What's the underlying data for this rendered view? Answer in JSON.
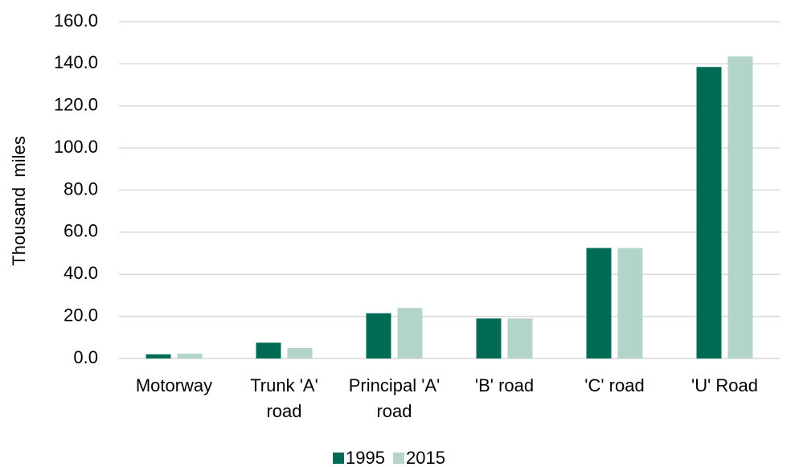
{
  "chart_data": {
    "type": "bar",
    "y_label": "Thousand  miles",
    "categories": [
      "Motorway",
      "Trunk 'A' road",
      "Principal 'A' road",
      "'B' road",
      "'C' road",
      "'U' Road"
    ],
    "series": [
      {
        "name": "1995",
        "color": "#006b54",
        "values": [
          2.0,
          7.5,
          21.5,
          19.0,
          52.5,
          138.5
        ]
      },
      {
        "name": "2015",
        "color": "#b3d4cb",
        "values": [
          2.3,
          5.0,
          24.0,
          19.0,
          52.5,
          143.5
        ]
      }
    ],
    "ylim": [
      0,
      160
    ],
    "yticks": [
      {
        "value": 0,
        "label": "0.0"
      },
      {
        "value": 20,
        "label": "20.0"
      },
      {
        "value": 40,
        "label": "40.0"
      },
      {
        "value": 60,
        "label": "60.0"
      },
      {
        "value": 80,
        "label": "80.0"
      },
      {
        "value": 100,
        "label": "100.0"
      },
      {
        "value": 120,
        "label": "120.0"
      },
      {
        "value": 140,
        "label": "140.0"
      },
      {
        "value": 160,
        "label": "160.0"
      }
    ],
    "grid": true
  }
}
